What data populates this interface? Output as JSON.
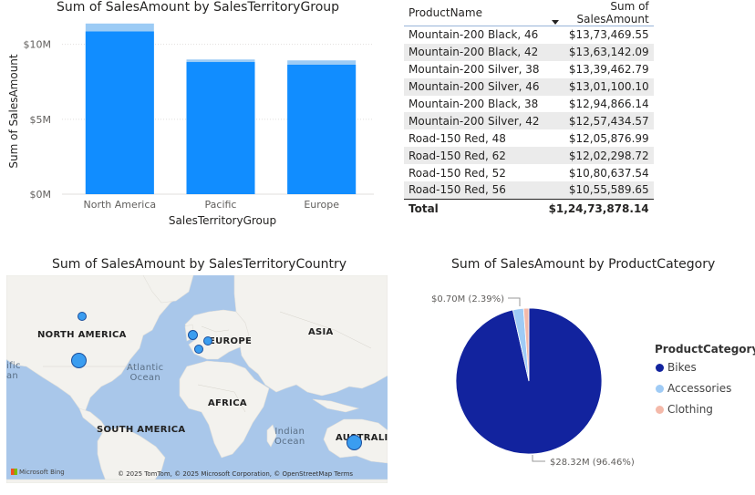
{
  "bar_chart": {
    "title": "Sum of SalesAmount by SalesTerritoryGroup",
    "colors": {
      "main": "#118dff",
      "top": "#9ccbf5",
      "axis_text": "#605e5c"
    }
  },
  "table": {
    "headers": [
      "ProductName",
      "Sum of SalesAmount"
    ],
    "rows": [
      [
        "Mountain-200 Black, 46",
        "$13,73,469.55"
      ],
      [
        "Mountain-200 Black, 42",
        "$13,63,142.09"
      ],
      [
        "Mountain-200 Silver, 38",
        "$13,39,462.79"
      ],
      [
        "Mountain-200 Silver, 46",
        "$13,01,100.10"
      ],
      [
        "Mountain-200 Black, 38",
        "$12,94,866.14"
      ],
      [
        "Mountain-200 Silver, 42",
        "$12,57,434.57"
      ],
      [
        "Road-150 Red, 48",
        "$12,05,876.99"
      ],
      [
        "Road-150 Red, 62",
        "$12,02,298.72"
      ],
      [
        "Road-150 Red, 52",
        "$10,80,637.54"
      ],
      [
        "Road-150 Red, 56",
        "$10,55,589.65"
      ]
    ],
    "total_label": "Total",
    "total_value": "$1,24,73,878.14"
  },
  "map": {
    "title": "Sum of SalesAmount by SalesTerritoryCountry",
    "labels": {
      "north_america": "NORTH AMERICA",
      "europe": "EUROPE",
      "asia": "ASIA",
      "africa": "AFRICA",
      "south_america": "SOUTH AMERICA",
      "australia": "AUSTRALIA",
      "atlantic": "Atlantic\nOcean",
      "indian": "Indian\nOcean",
      "pacific_fragment": "ific\nan"
    },
    "attribution": "© 2025 TomTom, © 2025 Microsoft Corporation, © OpenStreetMap  Terms",
    "bing": "Microsoft Bing"
  },
  "pie_chart": {
    "title": "Sum of SalesAmount by ProductCategory",
    "legend_title": "ProductCategory",
    "label_small": "$0.70M (2.39%)",
    "label_big": "$28.32M (96.46%)"
  },
  "chart_data": [
    {
      "type": "bar",
      "title": "Sum of SalesAmount by SalesTerritoryGroup",
      "xlabel": "SalesTerritoryGroup",
      "ylabel": "Sum of SalesAmount",
      "categories": [
        "North America",
        "Pacific",
        "Europe"
      ],
      "values": [
        11.39,
        8.99,
        8.93
      ],
      "highlight_values": [
        10.86,
        8.82,
        8.64
      ],
      "ylim": [
        0,
        11.5
      ],
      "yticks": [
        {
          "value": 0,
          "label": "$0M"
        },
        {
          "value": 5,
          "label": "$5M"
        },
        {
          "value": 10,
          "label": "$10M"
        }
      ],
      "grid": true
    },
    {
      "type": "pie",
      "title": "Sum of SalesAmount by ProductCategory",
      "legend_title": "ProductCategory",
      "legend_position": "right",
      "slices": [
        {
          "name": "Bikes",
          "value": 28.32,
          "percent": 96.46,
          "color": "#12239e"
        },
        {
          "name": "Accessories",
          "value": 0.7,
          "percent": 2.39,
          "color": "#9fcbf5"
        },
        {
          "name": "Clothing",
          "value": 0.34,
          "percent": 1.15,
          "color": "#f4b9a9"
        }
      ]
    },
    {
      "type": "scatter",
      "title": "Sum of SalesAmount by SalesTerritoryCountry",
      "points": [
        {
          "country": "Canada",
          "value": 1.98
        },
        {
          "country": "United States",
          "value": 9.39
        },
        {
          "country": "United Kingdom",
          "value": 3.39
        },
        {
          "country": "Germany",
          "value": 2.89
        },
        {
          "country": "France",
          "value": 2.64
        },
        {
          "country": "Australia",
          "value": 9.06
        }
      ]
    }
  ]
}
